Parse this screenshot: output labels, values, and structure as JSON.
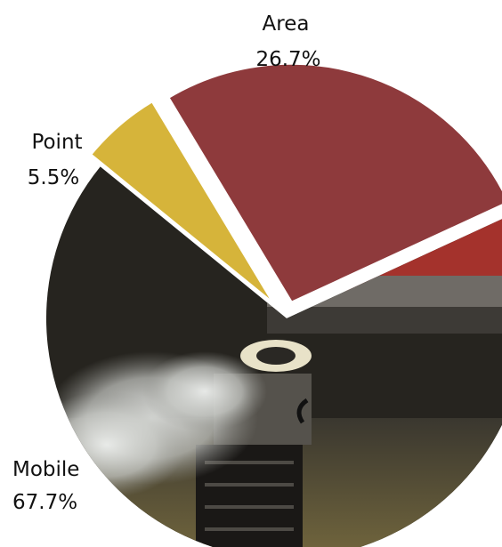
{
  "chart_data": {
    "type": "pie",
    "slices": [
      {
        "label": "Area",
        "value": 26.7,
        "value_label": "26.7%",
        "color": "#8e3a3c",
        "exploded": true
      },
      {
        "label": "Point",
        "value": 5.5,
        "value_label": "5.5%",
        "color": "#d6b43a",
        "exploded": true
      },
      {
        "label": "Mobile",
        "value": 67.7,
        "value_label": "67.7%",
        "color": "#2e2b27",
        "exploded": false
      }
    ],
    "unit": "%",
    "background_image": "vehicle-exhaust-photo",
    "colors": {
      "photo_dark": "#1f1d1a",
      "photo_mid": "#4a4741",
      "vehicle_red": "#a4322c",
      "smoke": "#d9dad7",
      "grass": "#6b6038"
    }
  }
}
